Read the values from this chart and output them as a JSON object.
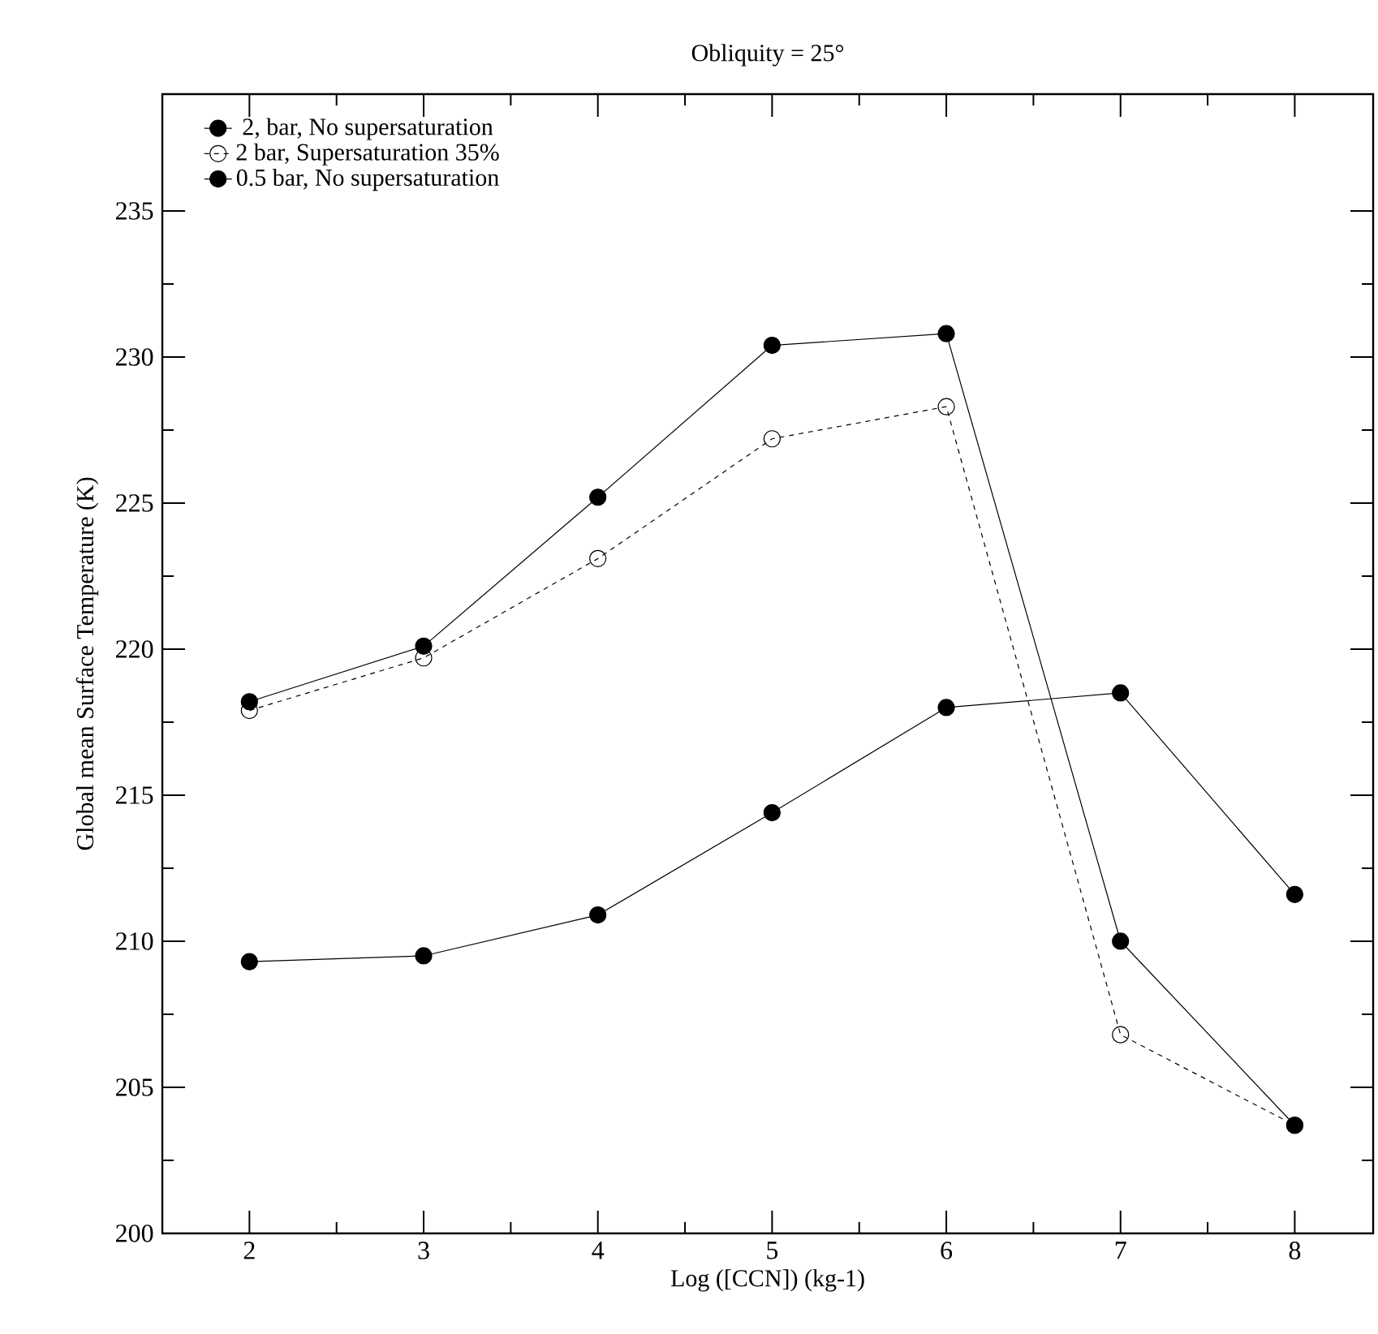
{
  "chart_data": {
    "type": "line",
    "title": "Obliquity = 25°",
    "xlabel": "Log ([CCN])   (kg-1)",
    "ylabel": "Global mean Surface Temperature (K)",
    "x": [
      2,
      3,
      4,
      5,
      6,
      7,
      8
    ],
    "series": [
      {
        "name": "2, bar, No supersaturation",
        "color": "#000000",
        "line_style": "solid",
        "values": [
          218.2,
          220.1,
          225.2,
          230.4,
          230.8,
          210.0,
          203.7
        ]
      },
      {
        "name": "2 bar, Supersaturation 35%",
        "color": "#000000",
        "line_style": "dashed",
        "values": [
          217.9,
          219.7,
          223.1,
          227.2,
          228.3,
          206.8,
          203.7
        ]
      },
      {
        "name": "0.5 bar, No supersaturation",
        "color": "#000000",
        "line_style": "solid",
        "values": [
          209.3,
          209.5,
          210.9,
          214.4,
          218.0,
          218.5,
          211.6
        ]
      }
    ],
    "xlim": [
      1.5,
      8.45
    ],
    "ylim": [
      200,
      239
    ],
    "xticks": [
      2,
      3,
      4,
      5,
      6,
      7,
      8
    ],
    "yticks": [
      200,
      205,
      210,
      215,
      220,
      225,
      230,
      235
    ],
    "marker": "circle",
    "grid": false,
    "legend": "top left"
  }
}
